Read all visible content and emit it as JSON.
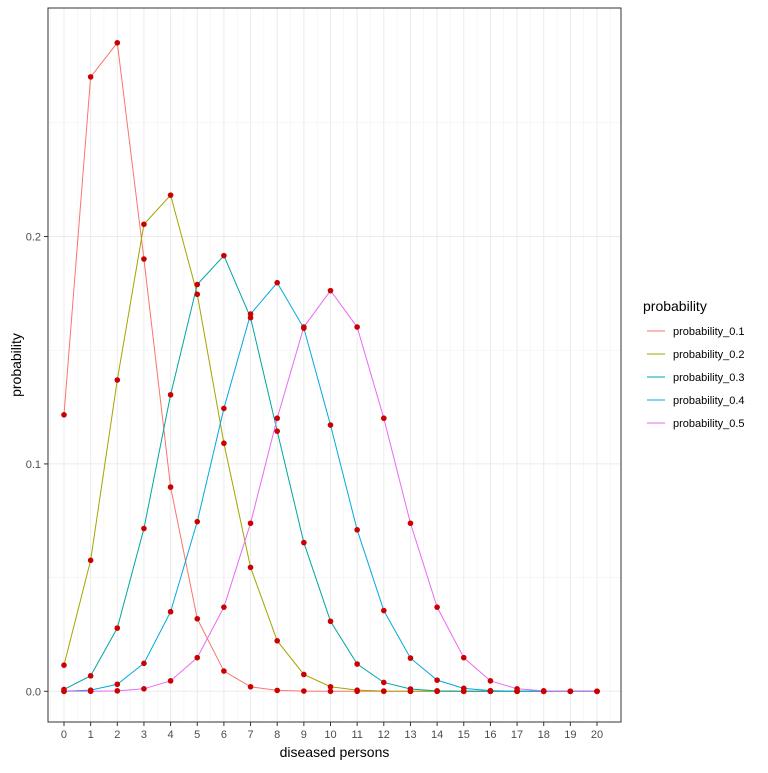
{
  "chart_data": {
    "type": "line",
    "title": "",
    "xlabel": "diseased persons",
    "ylabel": "probability",
    "x": [
      0,
      1,
      2,
      3,
      4,
      5,
      6,
      7,
      8,
      9,
      10,
      11,
      12,
      13,
      14,
      15,
      16,
      17,
      18,
      19,
      20
    ],
    "x_ticks": [
      "0",
      "1",
      "2",
      "3",
      "4",
      "5",
      "6",
      "7",
      "8",
      "9",
      "10",
      "11",
      "12",
      "13",
      "14",
      "15",
      "16",
      "17",
      "18",
      "19",
      "20"
    ],
    "y_ticks": [
      {
        "value": 0.0,
        "label": "0.0"
      },
      {
        "value": 0.1,
        "label": "0.1"
      },
      {
        "value": 0.2,
        "label": "0.2"
      }
    ],
    "xlim": [
      -0.6,
      20.9
    ],
    "ylim": [
      -0.0135,
      0.3005
    ],
    "grid": true,
    "point_color": "#cc0000",
    "legend": {
      "title": "probability",
      "position": "right"
    },
    "series": [
      {
        "name": "probability_0.1",
        "color": "#F8766D",
        "values": [
          0.1216,
          0.2702,
          0.2852,
          0.1901,
          0.0898,
          0.0319,
          0.0089,
          0.002,
          0.0004,
          0.0001,
          0.0,
          0.0,
          0.0,
          0.0,
          0.0,
          0.0,
          0.0,
          0.0,
          0.0,
          0.0,
          0.0
        ]
      },
      {
        "name": "probability_0.2",
        "color": "#A3A500",
        "values": [
          0.0115,
          0.0576,
          0.1369,
          0.2054,
          0.2182,
          0.1746,
          0.1091,
          0.0545,
          0.0222,
          0.0074,
          0.002,
          0.0005,
          0.0001,
          0.0,
          0.0,
          0.0,
          0.0,
          0.0,
          0.0,
          0.0,
          0.0
        ]
      },
      {
        "name": "probability_0.3",
        "color": "#00A5A0",
        "values": [
          0.0008,
          0.0068,
          0.0278,
          0.0716,
          0.1304,
          0.1789,
          0.1916,
          0.1643,
          0.1144,
          0.0654,
          0.0308,
          0.012,
          0.0039,
          0.001,
          0.0002,
          0.0,
          0.0,
          0.0,
          0.0,
          0.0,
          0.0
        ]
      },
      {
        "name": "probability_0.4",
        "color": "#00A9E0",
        "values": [
          0.0,
          0.0005,
          0.0031,
          0.0123,
          0.035,
          0.0746,
          0.1244,
          0.1659,
          0.1797,
          0.1597,
          0.1171,
          0.071,
          0.0355,
          0.0146,
          0.0049,
          0.0013,
          0.0003,
          0.0,
          0.0,
          0.0,
          0.0
        ]
      },
      {
        "name": "probability_0.5",
        "color": "#E76BF3",
        "values": [
          0.0,
          0.0,
          0.0002,
          0.0011,
          0.0046,
          0.0148,
          0.037,
          0.0739,
          0.1201,
          0.1602,
          0.1762,
          0.1602,
          0.1201,
          0.0739,
          0.037,
          0.0148,
          0.0046,
          0.0011,
          0.0002,
          0.0,
          0.0
        ]
      }
    ]
  }
}
